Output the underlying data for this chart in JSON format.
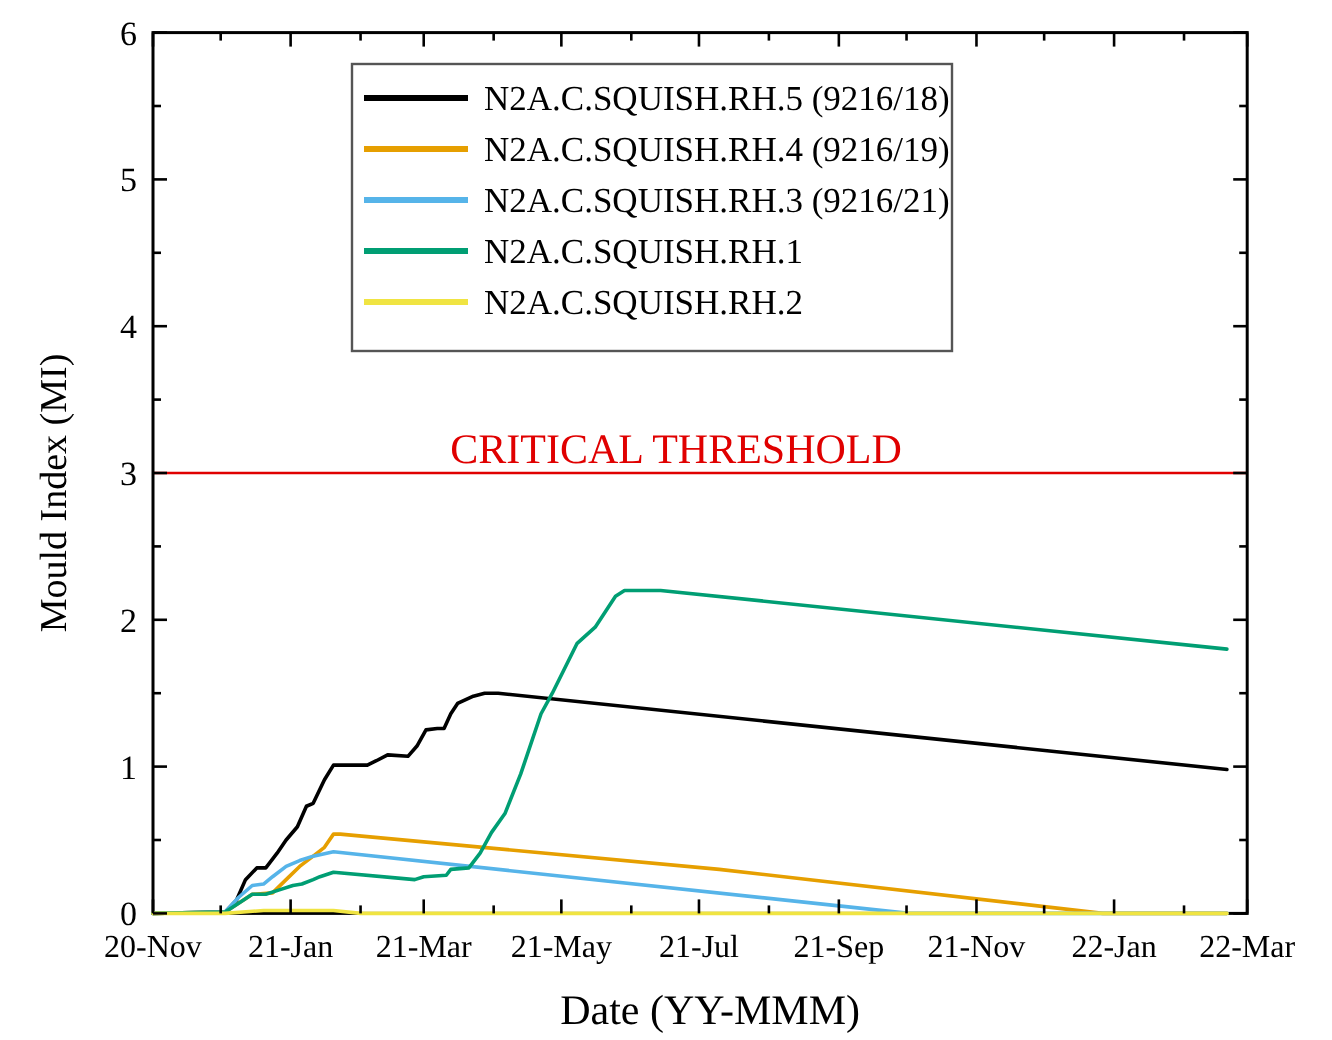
{
  "chart_data": {
    "type": "line",
    "xlabel": "Date (YY-MMM)",
    "ylabel": "Mould Index (MI)",
    "xlim": [
      "2020-11-01",
      "2022-03-01"
    ],
    "xticks": [
      {
        "value": "2020-11-01",
        "label": "20-Nov"
      },
      {
        "value": "2020-12-01",
        "label": null
      },
      {
        "value": "2021-01-01",
        "label": "21-Jan"
      },
      {
        "value": "2021-02-01",
        "label": null
      },
      {
        "value": "2021-03-01",
        "label": "21-Mar"
      },
      {
        "value": "2021-04-01",
        "label": null
      },
      {
        "value": "2021-05-01",
        "label": "21-May"
      },
      {
        "value": "2021-06-01",
        "label": null
      },
      {
        "value": "2021-07-01",
        "label": "21-Jul"
      },
      {
        "value": "2021-08-01",
        "label": null
      },
      {
        "value": "2021-09-01",
        "label": "21-Sep"
      },
      {
        "value": "2021-10-01",
        "label": null
      },
      {
        "value": "2021-11-01",
        "label": "21-Nov"
      },
      {
        "value": "2021-12-01",
        "label": null
      },
      {
        "value": "2022-01-01",
        "label": "22-Jan"
      },
      {
        "value": "2022-02-01",
        "label": null
      },
      {
        "value": "2022-03-01",
        "label": "22-Mar"
      }
    ],
    "ylim": [
      0,
      6
    ],
    "yticks": [
      0,
      {
        "value": 0.5,
        "label": null
      },
      1,
      {
        "value": 1.5,
        "label": null
      },
      2,
      {
        "value": 2.5,
        "label": null
      },
      3,
      {
        "value": 3.5,
        "label": null
      },
      4,
      {
        "value": 4.5,
        "label": null
      },
      5,
      {
        "value": 5.5,
        "label": null
      },
      6
    ],
    "grid": false,
    "legend": "top",
    "marker": "none",
    "line_style": "solid",
    "ref_lines": [
      {
        "axis": "y",
        "value": 3,
        "label": "CRITICAL THRESHOLD",
        "color": "#e00000"
      }
    ],
    "series": [
      {
        "name": "N2A.C.SQUISH.RH.5 (9216/18)",
        "color": "#000000",
        "x": [
          "2020-11-01",
          "2020-12-03",
          "2020-12-08",
          "2020-12-12",
          "2020-12-17",
          "2020-12-21",
          "2020-12-26",
          "2020-12-30",
          "2021-01-04",
          "2021-01-08",
          "2021-01-11",
          "2021-01-16",
          "2021-01-20",
          "2021-01-30",
          "2021-02-04",
          "2021-02-08",
          "2021-02-13",
          "2021-02-22",
          "2021-02-26",
          "2021-03-02",
          "2021-03-07",
          "2021-03-10",
          "2021-03-13",
          "2021-03-16",
          "2021-03-23",
          "2021-03-28",
          "2021-04-03",
          "2022-02-20"
        ],
        "values": [
          0,
          0.01,
          0.09,
          0.23,
          0.31,
          0.31,
          0.41,
          0.5,
          0.59,
          0.73,
          0.75,
          0.91,
          1.01,
          1.01,
          1.01,
          1.04,
          1.08,
          1.07,
          1.14,
          1.25,
          1.26,
          1.26,
          1.36,
          1.43,
          1.48,
          1.5,
          1.5,
          0.98
        ]
      },
      {
        "name": "N2A.C.SQUISH.RH.4 (9216/19)",
        "color": "#e69f00",
        "x": [
          "2020-11-01",
          "2020-12-03",
          "2020-12-15",
          "2020-12-24",
          "2020-12-30",
          "2021-01-05",
          "2021-01-11",
          "2021-01-16",
          "2021-01-20",
          "2021-01-23",
          "2021-07-10",
          "2021-12-27",
          "2022-02-20"
        ],
        "values": [
          0,
          0.01,
          0.13,
          0.14,
          0.23,
          0.32,
          0.39,
          0.45,
          0.54,
          0.54,
          0.3,
          0,
          0
        ]
      },
      {
        "name": "N2A.C.SQUISH.RH.3 (9216/21)",
        "color": "#56b4e9",
        "x": [
          "2020-11-01",
          "2020-12-03",
          "2020-12-09",
          "2020-12-15",
          "2020-12-20",
          "2020-12-24",
          "2020-12-30",
          "2021-01-05",
          "2021-01-11",
          "2021-01-20",
          "2021-10-02",
          "2022-02-20"
        ],
        "values": [
          0,
          0.01,
          0.11,
          0.19,
          0.2,
          0.25,
          0.32,
          0.36,
          0.39,
          0.42,
          0,
          0
        ]
      },
      {
        "name": "N2A.C.SQUISH.RH.1",
        "color": "#009e73",
        "x": [
          "2020-11-01",
          "2020-12-03",
          "2020-12-11",
          "2020-12-15",
          "2020-12-21",
          "2020-12-27",
          "2021-01-02",
          "2021-01-06",
          "2021-01-11",
          "2021-01-14",
          "2021-01-20",
          "2021-02-25",
          "2021-03-01",
          "2021-03-11",
          "2021-03-13",
          "2021-03-21",
          "2021-03-26",
          "2021-03-31",
          "2021-04-06",
          "2021-04-13",
          "2021-04-22",
          "2021-04-27",
          "2021-05-08",
          "2021-05-16",
          "2021-05-25",
          "2021-05-29",
          "2021-06-14",
          "2022-02-20"
        ],
        "values": [
          0,
          0.01,
          0.09,
          0.13,
          0.13,
          0.16,
          0.19,
          0.2,
          0.23,
          0.25,
          0.28,
          0.23,
          0.25,
          0.26,
          0.3,
          0.31,
          0.41,
          0.55,
          0.68,
          0.95,
          1.36,
          1.5,
          1.84,
          1.95,
          2.16,
          2.2,
          2.2,
          1.8
        ]
      },
      {
        "name": "N2A.C.SQUISH.RH.2",
        "color": "#f0e442",
        "x": [
          "2020-11-01",
          "2020-12-03",
          "2020-12-20",
          "2021-01-20",
          "2021-02-01",
          "2022-02-20"
        ],
        "values": [
          0,
          0,
          0.02,
          0.02,
          0,
          0
        ]
      }
    ]
  }
}
